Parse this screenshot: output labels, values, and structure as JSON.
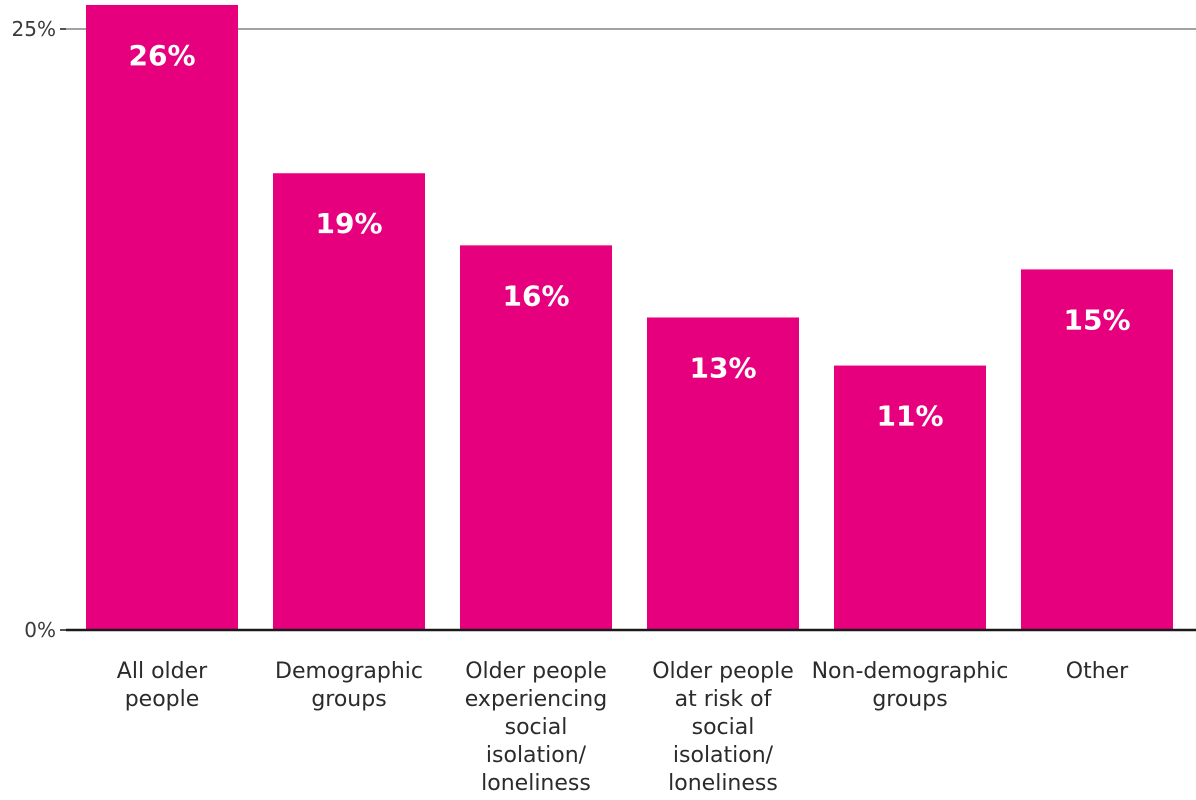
{
  "colors": {
    "bar": "#E6007E",
    "axis": "#1a1a1a",
    "gridline": "#444444"
  },
  "chart_data": {
    "type": "bar",
    "title": "",
    "xlabel": "",
    "ylabel": "",
    "ylim": [
      0,
      25
    ],
    "yticks": [
      {
        "value": 0,
        "label": "0%"
      },
      {
        "value": 25,
        "label": "25%"
      }
    ],
    "grid": false,
    "legend": "none",
    "categories": [
      [
        "All older",
        "people"
      ],
      [
        "Demographic",
        "groups"
      ],
      [
        "Older people",
        "experiencing",
        "social",
        "isolation/",
        "loneliness"
      ],
      [
        "Older people",
        "at risk of",
        "social",
        "isolation/",
        "loneliness"
      ],
      [
        "Non-demographic",
        "groups"
      ],
      [
        "Other"
      ]
    ],
    "values": [
      26,
      19,
      16,
      13,
      11,
      15
    ],
    "value_labels": [
      "26%",
      "19%",
      "16%",
      "13%",
      "11%",
      "15%"
    ]
  }
}
